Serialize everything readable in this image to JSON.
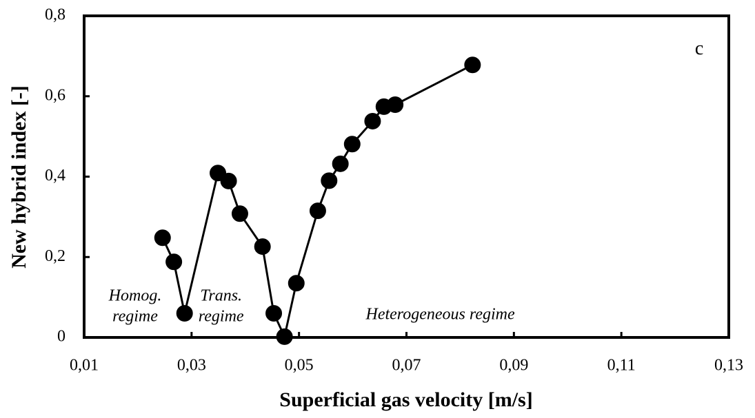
{
  "chart_data": {
    "type": "line",
    "xlabel": "Superficial gas velocity [m/s]",
    "ylabel": "New hybrid index [-]",
    "x": [
      0.0246,
      0.0267,
      0.0287,
      0.0349,
      0.0369,
      0.039,
      0.0432,
      0.0453,
      0.0473,
      0.0495,
      0.0535,
      0.0556,
      0.0577,
      0.0599,
      0.0637,
      0.0658,
      0.0679,
      0.0823
    ],
    "series": [
      {
        "color": "#000000",
        "values": [
          0.248,
          0.188,
          0.06,
          0.409,
          0.389,
          0.308,
          0.226,
          0.06,
          0.002,
          0.135,
          0.315,
          0.39,
          0.432,
          0.481,
          0.538,
          0.574,
          0.579,
          0.678
        ]
      }
    ],
    "xlim": [
      0.01,
      0.13
    ],
    "ylim": [
      0,
      0.8
    ],
    "xticks": [
      {
        "value": 0.01,
        "label": "0,01"
      },
      {
        "value": 0.03,
        "label": "0,03"
      },
      {
        "value": 0.05,
        "label": "0,05"
      },
      {
        "value": 0.07,
        "label": "0,07"
      },
      {
        "value": 0.09,
        "label": "0,09"
      },
      {
        "value": 0.11,
        "label": "0,11"
      },
      {
        "value": 0.13,
        "label": "0,13"
      }
    ],
    "yticks": [
      0,
      {
        "value": 0.2,
        "label": "0,2"
      },
      {
        "value": 0.4,
        "label": "0,4"
      },
      {
        "value": 0.6,
        "label": "0,6"
      },
      {
        "value": 0.8,
        "label": "0,8"
      }
    ],
    "annotations": [
      {
        "lines": [
          "c"
        ],
        "x": 0.1245,
        "y": 0.715
      },
      {
        "lines": [
          "Homog.",
          "regime"
        ],
        "x": 0.0195,
        "y": 0.075
      },
      {
        "lines": [
          "Trans.",
          "regime"
        ],
        "x": 0.0355,
        "y": 0.075
      },
      {
        "lines": [
          "Heterogeneous regime"
        ],
        "x": 0.0763,
        "y": 0.055
      }
    ]
  }
}
